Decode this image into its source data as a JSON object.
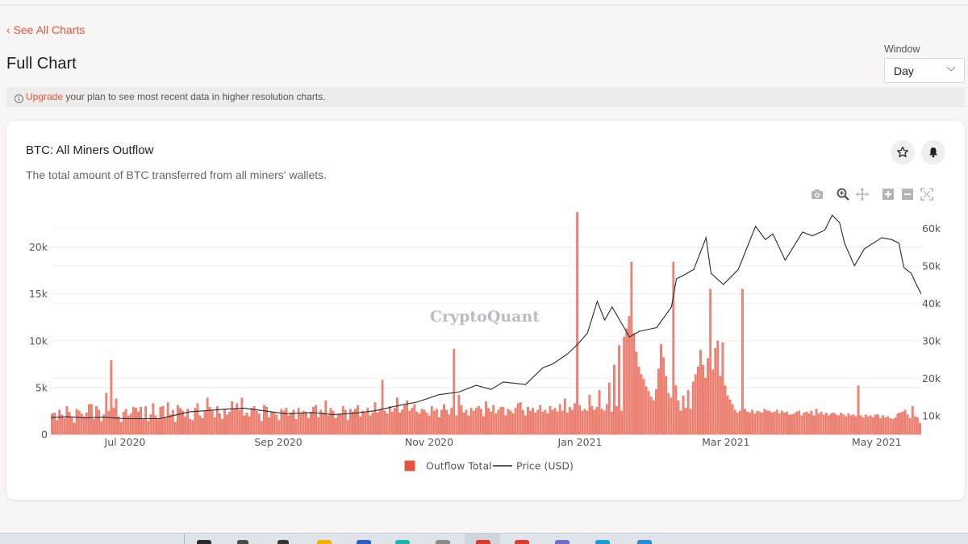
{
  "nav": {
    "back_label": "See All Charts",
    "back_chevron": "‹"
  },
  "page": {
    "title": "Full Chart"
  },
  "window": {
    "label": "Window",
    "value": "Day"
  },
  "notice": {
    "upgrade_link": "Upgrade",
    "message": " your plan to see most recent data in higher resolution charts.",
    "info_glyph": "i"
  },
  "card": {
    "title": "BTC: All Miners Outflow",
    "subtitle": "The total amount of BTC transferred from all miners' wallets.",
    "watermark": "CryptoQuant"
  },
  "colors": {
    "accent": "#e5533d",
    "bar_fill": "#ee8778",
    "bar_stroke": "#e05a47",
    "price_line": "#1f2a33"
  },
  "icons": [
    "star-icon",
    "bell-icon",
    "camera-icon",
    "zoom-icon",
    "pan-icon",
    "zoom-in-icon",
    "zoom-out-icon",
    "autoscale-icon",
    "chevron-down-icon",
    "info-icon"
  ],
  "chart_data": {
    "type": "bar",
    "title": "BTC: All Miners Outflow",
    "x_ticks": [
      "Jul 2020",
      "Sep 2020",
      "Nov 2020",
      "Jan 2021",
      "Mar 2021",
      "May 2021"
    ],
    "y_left_ticks": [
      "0",
      "5k",
      "10k",
      "15k",
      "20k"
    ],
    "y_right_ticks": [
      "10k",
      "20k",
      "30k",
      "40k",
      "50k",
      "60k"
    ],
    "y_left_range": [
      0,
      24000
    ],
    "y_right_range": [
      5000,
      65000
    ],
    "x_range": [
      "2020-06-01",
      "2021-05-19"
    ],
    "legend_position": "bottom-center",
    "grid": true,
    "series": [
      {
        "name": "Outflow Total",
        "type": "bar",
        "axis": "left",
        "samples_per_day": 1,
        "values_base": [
          2200,
          2300,
          1500,
          2600,
          2100,
          1700,
          3000,
          2400,
          1800,
          1200,
          2700,
          2500,
          2200,
          1900,
          2300,
          3200,
          2800,
          1600,
          3000,
          2600,
          1400,
          2100,
          4400,
          2500,
          1800,
          2800,
          3800,
          1900,
          1300,
          2400,
          2700,
          2000,
          2200,
          1500,
          2800,
          2400,
          2900,
          1700,
          3000,
          1400,
          2500,
          3300,
          2000,
          1600,
          2900,
          2300,
          1800,
          3400,
          2100,
          2600,
          1300,
          3100,
          2200,
          2500,
          1900,
          2700,
          2400,
          1500,
          2800,
          3300,
          2000,
          1700,
          2500,
          3900,
          2300,
          2600,
          1800,
          3000,
          2200,
          1600,
          2700,
          2100,
          2400,
          3500,
          2700,
          1900,
          2600,
          3900,
          2000,
          2300,
          1700,
          2800,
          3000,
          2500,
          2200,
          1400,
          3100,
          2900,
          1800,
          2400,
          2600,
          2100,
          1500,
          2700,
          2500,
          2900,
          2000,
          2300,
          2600,
          1600,
          2800,
          2200,
          2500,
          3200,
          1700,
          2400,
          2900,
          2100,
          1800,
          2600,
          2300,
          3600,
          2000,
          2800,
          2500,
          1700,
          2400,
          2200,
          3000,
          2600,
          1500,
          2700,
          2400,
          2100,
          3100,
          1900,
          2500,
          2300,
          2800,
          2000,
          2600,
          3400,
          2300,
          2700,
          1600,
          2500,
          2200,
          3000,
          2400,
          2800,
          1900,
          2300,
          2600,
          3100,
          2000,
          2500,
          2800,
          1800,
          2400,
          2200,
          3000,
          2600,
          2300,
          2000,
          2900,
          2500,
          2700,
          1800,
          2400,
          3200,
          2600,
          2100,
          2800,
          2400,
          2000,
          2700,
          3100,
          2300,
          2600,
          2000,
          2800,
          2500,
          2200,
          3000,
          2700,
          1900,
          2500,
          2800,
          2400,
          3100,
          2200,
          2600,
          2900,
          2300,
          2000,
          2700,
          2500,
          2200,
          2800,
          3300,
          2400,
          2600,
          2000,
          2900,
          2500,
          2800,
          2300,
          2600,
          3100,
          2400,
          2700,
          2200,
          3000,
          2600,
          2800,
          2400,
          3200,
          2500,
          2700,
          2300,
          2900,
          2600,
          2200,
          2800,
          3100,
          2400,
          2700,
          2500,
          2300,
          3000,
          2600,
          2900,
          2400,
          2700,
          2500,
          3200,
          2800,
          2400,
          2600,
          3000,
          2700,
          2500,
          2800,
          2300,
          2900,
          2600,
          2400,
          2700,
          3100,
          2500,
          2200,
          2800,
          2600,
          2400,
          2900,
          2700,
          2300,
          2600,
          2500,
          2800,
          2400,
          2700,
          2200,
          2900,
          2600,
          2500,
          2300,
          2800,
          2400,
          2700,
          2600,
          2200,
          2500,
          2800,
          2300,
          2600,
          2400,
          2500,
          2700,
          2200,
          2600,
          2400,
          2300,
          2500,
          2800,
          2200,
          2400,
          2600,
          2300,
          2500,
          2200,
          2700,
          2400,
          2300,
          2600,
          2200,
          2500,
          2400,
          2300,
          2700,
          2100,
          2500,
          2300,
          2400,
          2600,
          2200,
          2500,
          2300,
          2400,
          2100,
          2600,
          2200,
          2400,
          2500,
          2000,
          2300,
          2400,
          2200,
          2500,
          2000,
          2300,
          2200,
          2400,
          2100,
          2300,
          2000,
          2200,
          2300,
          2100,
          2000,
          2200,
          2100,
          1900,
          2200,
          2000,
          2100,
          1900,
          2200,
          2000,
          1800,
          2100,
          1900,
          2000,
          1800,
          2100,
          1900,
          1700,
          2000,
          1800,
          1900,
          1700,
          1600,
          1800
        ],
        "overrides_by_day": {
          "16": 3200,
          "24": 2500,
          "33": 2900,
          "40": 2100,
          "45": 3000,
          "52": 2800,
          "56": 1600,
          "64": 2900,
          "75": 3300,
          "80": 1900,
          "90": 2300,
          "95": 2800,
          "103": 2400,
          "107": 3100,
          "116": 2100,
          "123": 2700,
          "130": 2300,
          "134": 5800,
          "140": 3900,
          "144": 3600,
          "147": 3200,
          "150": 2700,
          "154": 3000,
          "158": 2600,
          "165": 4200,
          "172": 2800,
          "176": 3500,
          "183": 2900,
          "190": 3400,
          "200": 2600,
          "208": 3800,
          "212": 3300,
          "215": 2500,
          "218": 4200,
          "222": 4700,
          "226": 5500,
          "228": 7400,
          "230": 9500,
          "232": 10400,
          "233": 11300,
          "234": 12600,
          "235": 18400,
          "236": 10800,
          "237": 8800,
          "238": 7200,
          "239": 6400,
          "240": 5900,
          "241": 5100,
          "242": 4600,
          "243": 4000,
          "244": 3600,
          "245": 4800,
          "246": 7000,
          "247": 9600,
          "248": 8200,
          "249": 6200,
          "250": 4400,
          "251": 3900,
          "252": 4300,
          "253": 5200,
          "254": 3600,
          "256": 4100,
          "258": 4700,
          "260": 5600,
          "261": 6400,
          "262": 7200,
          "263": 9000,
          "264": 7400,
          "265": 6000,
          "266": 8100,
          "267": 15500,
          "268": 6900,
          "269": 9200,
          "270": 10000,
          "271": 6200,
          "272": 9800,
          "273": 5200,
          "274": 4100,
          "275": 3700,
          "276": 3200,
          "290": 2500,
          "300": 2100,
          "310": 2700,
          "320": 2300,
          "335": 2100,
          "345": 2400,
          "350": 1900
        },
        "spikes": [
          {
            "date": "2020-06-25",
            "value": 7900
          },
          {
            "date": "2020-11-11",
            "value": 9100
          },
          {
            "date": "2020-12-31",
            "value": 23700
          },
          {
            "date": "2021-02-08",
            "value": 18400
          },
          {
            "date": "2021-03-08",
            "value": 15500
          },
          {
            "date": "2021-04-24",
            "value": 5200
          }
        ]
      },
      {
        "name": "Price (USD)",
        "type": "line",
        "axis": "right",
        "points": [
          [
            "2020-06-01",
            9500
          ],
          [
            "2020-06-08",
            9700
          ],
          [
            "2020-06-15",
            9400
          ],
          [
            "2020-06-22",
            9600
          ],
          [
            "2020-07-01",
            9200
          ],
          [
            "2020-07-15",
            9200
          ],
          [
            "2020-07-27",
            11000
          ],
          [
            "2020-08-10",
            11700
          ],
          [
            "2020-08-18",
            12000
          ],
          [
            "2020-08-25",
            11400
          ],
          [
            "2020-09-04",
            10500
          ],
          [
            "2020-09-15",
            10800
          ],
          [
            "2020-09-23",
            10300
          ],
          [
            "2020-10-01",
            10600
          ],
          [
            "2020-10-10",
            11300
          ],
          [
            "2020-10-21",
            12900
          ],
          [
            "2020-10-27",
            13600
          ],
          [
            "2020-11-05",
            15600
          ],
          [
            "2020-11-13",
            16300
          ],
          [
            "2020-11-20",
            18100
          ],
          [
            "2020-11-26",
            17000
          ],
          [
            "2020-12-01",
            19000
          ],
          [
            "2020-12-10",
            18300
          ],
          [
            "2020-12-17",
            22800
          ],
          [
            "2020-12-21",
            23800
          ],
          [
            "2020-12-27",
            26500
          ],
          [
            "2020-12-31",
            29000
          ],
          [
            "2021-01-04",
            32000
          ],
          [
            "2021-01-08",
            40500
          ],
          [
            "2021-01-11",
            35500
          ],
          [
            "2021-01-14",
            39000
          ],
          [
            "2021-01-21",
            31000
          ],
          [
            "2021-01-25",
            32500
          ],
          [
            "2021-02-01",
            33500
          ],
          [
            "2021-02-07",
            39000
          ],
          [
            "2021-02-09",
            46500
          ],
          [
            "2021-02-12",
            47500
          ],
          [
            "2021-02-16",
            49000
          ],
          [
            "2021-02-21",
            57500
          ],
          [
            "2021-02-23",
            48000
          ],
          [
            "2021-02-28",
            45000
          ],
          [
            "2021-03-06",
            49000
          ],
          [
            "2021-03-13",
            60500
          ],
          [
            "2021-03-17",
            57000
          ],
          [
            "2021-03-20",
            58500
          ],
          [
            "2021-03-25",
            51500
          ],
          [
            "2021-04-01",
            59000
          ],
          [
            "2021-04-05",
            58000
          ],
          [
            "2021-04-10",
            59500
          ],
          [
            "2021-04-13",
            63500
          ],
          [
            "2021-04-16",
            61500
          ],
          [
            "2021-04-18",
            56000
          ],
          [
            "2021-04-22",
            50000
          ],
          [
            "2021-04-26",
            54500
          ],
          [
            "2021-05-03",
            57500
          ],
          [
            "2021-05-07",
            57000
          ],
          [
            "2021-05-10",
            56000
          ],
          [
            "2021-05-12",
            49500
          ],
          [
            "2021-05-15",
            48000
          ],
          [
            "2021-05-17",
            45000
          ],
          [
            "2021-05-19",
            42500
          ]
        ]
      }
    ],
    "legend": [
      {
        "label": "Outflow Total",
        "kind": "bar"
      },
      {
        "label": "Price (USD)",
        "kind": "line"
      }
    ]
  }
}
